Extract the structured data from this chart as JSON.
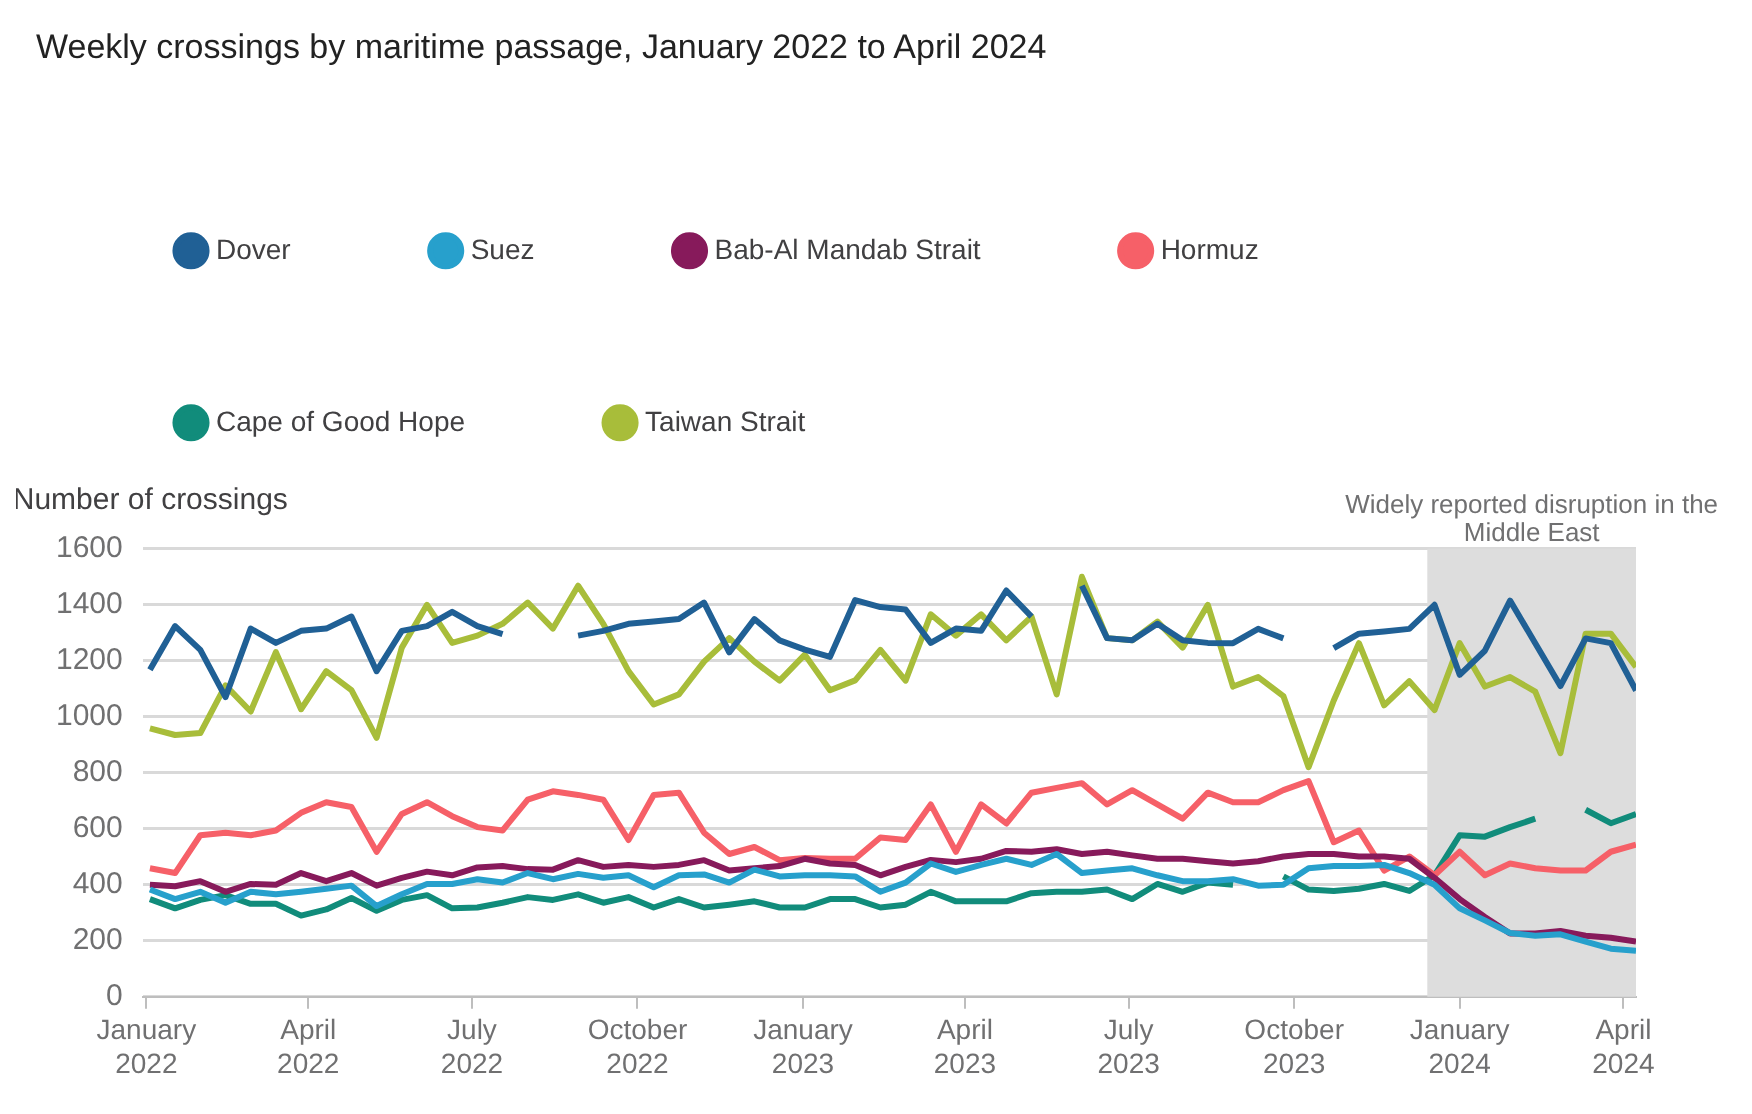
{
  "chart_data": {
    "type": "line",
    "title": "Weekly crossings by maritime passage, January 2022 to April 2024",
    "ylabel": "Number of crossings",
    "x": [
      "2022-01-03",
      "2022-01-17",
      "2022-01-31",
      "2022-02-14",
      "2022-02-28",
      "2022-03-14",
      "2022-03-28",
      "2022-04-11",
      "2022-04-25",
      "2022-05-09",
      "2022-05-23",
      "2022-06-06",
      "2022-06-20",
      "2022-07-04",
      "2022-07-18",
      "2022-08-01",
      "2022-08-15",
      "2022-08-29",
      "2022-09-12",
      "2022-09-26",
      "2022-10-10",
      "2022-10-24",
      "2022-11-07",
      "2022-11-21",
      "2022-12-05",
      "2022-12-19",
      "2023-01-02",
      "2023-01-16",
      "2023-01-30",
      "2023-02-13",
      "2023-02-27",
      "2023-03-13",
      "2023-03-27",
      "2023-04-10",
      "2023-04-24",
      "2023-05-08",
      "2023-05-22",
      "2023-06-05",
      "2023-06-19",
      "2023-07-03",
      "2023-07-17",
      "2023-07-31",
      "2023-08-14",
      "2023-08-28",
      "2023-09-11",
      "2023-09-25",
      "2023-10-09",
      "2023-10-23",
      "2023-11-06",
      "2023-11-20",
      "2023-12-04",
      "2023-12-18",
      "2024-01-01",
      "2024-01-15",
      "2024-01-29",
      "2024-02-12",
      "2024-02-26",
      "2024-03-11",
      "2024-03-25",
      "2024-04-08"
    ],
    "series": [
      {
        "name": "Dover",
        "color": "#206095",
        "values": [
          1168,
          1324,
          1239,
          1070,
          1315,
          1264,
          1307,
          1315,
          1358,
          1163,
          1307,
          1324,
          1375,
          1324,
          1295,
          null,
          null,
          1290,
          1307,
          1332,
          1340,
          1349,
          1408,
          1230,
          1349,
          1273,
          1240,
          1214,
          1417,
          1392,
          1383,
          1264,
          1315,
          1307,
          1451,
          1358,
          null,
          1468,
          1281,
          1273,
          1332,
          1273,
          1264,
          1263,
          1314,
          1280,
          null,
          1245,
          1297,
          1305,
          1314,
          1400,
          1150,
          1236,
          1415,
          1263,
          1110,
          1280,
          1263,
          1094
        ]
      },
      {
        "name": "Suez",
        "color": "#27a0cc",
        "values": [
          383,
          349,
          375,
          336,
          375,
          366,
          375,
          386,
          397,
          324,
          366,
          403,
          403,
          420,
          408,
          442,
          420,
          439,
          425,
          434,
          391,
          434,
          437,
          408,
          454,
          430,
          434,
          434,
          430,
          375,
          408,
          476,
          446,
          471,
          493,
          471,
          510,
          442,
          451,
          459,
          434,
          413,
          413,
          420,
          397,
          400,
          459,
          467,
          467,
          471,
          442,
          400,
          316,
          273,
          228,
          218,
          223,
          197,
          172,
          164
        ]
      },
      {
        "name": "Bab-Al Mandab Strait",
        "color": "#871a5b",
        "values": [
          400,
          395,
          413,
          375,
          403,
          400,
          442,
          413,
          442,
          397,
          425,
          447,
          434,
          462,
          467,
          456,
          454,
          488,
          464,
          471,
          464,
          471,
          488,
          451,
          459,
          467,
          493,
          476,
          471,
          434,
          464,
          489,
          481,
          493,
          521,
          518,
          527,
          510,
          518,
          505,
          493,
          493,
          484,
          476,
          484,
          501,
          510,
          510,
          501,
          501,
          493,
          425,
          349,
          285,
          226,
          226,
          235,
          218,
          211,
          197
        ]
      },
      {
        "name": "Hormuz",
        "color": "#f66068",
        "values": [
          459,
          442,
          577,
          586,
          577,
          594,
          657,
          695,
          678,
          518,
          653,
          695,
          645,
          606,
          594,
          704,
          734,
          721,
          704,
          560,
          721,
          729,
          586,
          510,
          535,
          488,
          496,
          493,
          493,
          569,
          560,
          687,
          518,
          687,
          619,
          729,
          746,
          763,
          687,
          738,
          687,
          636,
          729,
          695,
          695,
          738,
          770,
          552,
          594,
          451,
          501,
          434,
          518,
          434,
          476,
          459,
          451,
          451,
          518,
          543
        ]
      },
      {
        "name": "Cape of Good Hope",
        "color": "#118c7b",
        "values": [
          349,
          316,
          346,
          363,
          332,
          332,
          290,
          312,
          353,
          307,
          346,
          363,
          316,
          319,
          336,
          356,
          346,
          366,
          336,
          356,
          319,
          349,
          319,
          329,
          341,
          319,
          319,
          349,
          349,
          319,
          329,
          375,
          341,
          341,
          341,
          370,
          375,
          375,
          383,
          349,
          403,
          375,
          408,
          400,
          null,
          430,
          383,
          378,
          386,
          403,
          378,
          434,
          577,
          572,
          606,
          636,
          null,
          668,
          620,
          653
        ]
      },
      {
        "name": "Taiwan Strait",
        "color": "#a8bd3a",
        "values": [
          959,
          935,
          942,
          1112,
          1019,
          1231,
          1027,
          1163,
          1095,
          925,
          1247,
          1400,
          1264,
          1290,
          1332,
          1408,
          1315,
          1468,
          1332,
          1163,
          1044,
          1080,
          1197,
          1281,
          1197,
          1129,
          1222,
          1095,
          1130,
          1239,
          1129,
          1366,
          1290,
          1366,
          1273,
          1358,
          1080,
          1500,
          1281,
          1273,
          1340,
          1247,
          1400,
          1108,
          1142,
          1074,
          820,
          1058,
          1263,
          1041,
          1127,
          1024,
          1263,
          1108,
          1142,
          1090,
          870,
          1297,
          1297,
          1178
        ]
      }
    ],
    "xlim": [
      "2021-12-30",
      "2024-04-08"
    ],
    "xticks": [
      {
        "value": "2022-01-01",
        "label": "January 2022"
      },
      {
        "value": "2022-04-01",
        "label": "April 2022"
      },
      {
        "value": "2022-07-01",
        "label": "July 2022"
      },
      {
        "value": "2022-10-01",
        "label": "October 2022"
      },
      {
        "value": "2023-01-01",
        "label": "January 2023"
      },
      {
        "value": "2023-04-01",
        "label": "April 2023"
      },
      {
        "value": "2023-07-01",
        "label": "July 2023"
      },
      {
        "value": "2023-10-01",
        "label": "October 2023"
      },
      {
        "value": "2024-01-01",
        "label": "January 2024"
      },
      {
        "value": "2024-04-01",
        "label": "April 2024"
      }
    ],
    "ylim": [
      0,
      1600
    ],
    "yticks": [
      0,
      200,
      400,
      600,
      800,
      1000,
      1200,
      1400,
      1600
    ],
    "bands": [
      {
        "axis": "x",
        "from": "2023-12-14",
        "to": "2024-04-08",
        "label": "Widely reported disruption in the Middle East",
        "color": "#dddddd"
      }
    ],
    "grid": "y",
    "legend": "top",
    "marker": "none",
    "line_style": "solid"
  }
}
